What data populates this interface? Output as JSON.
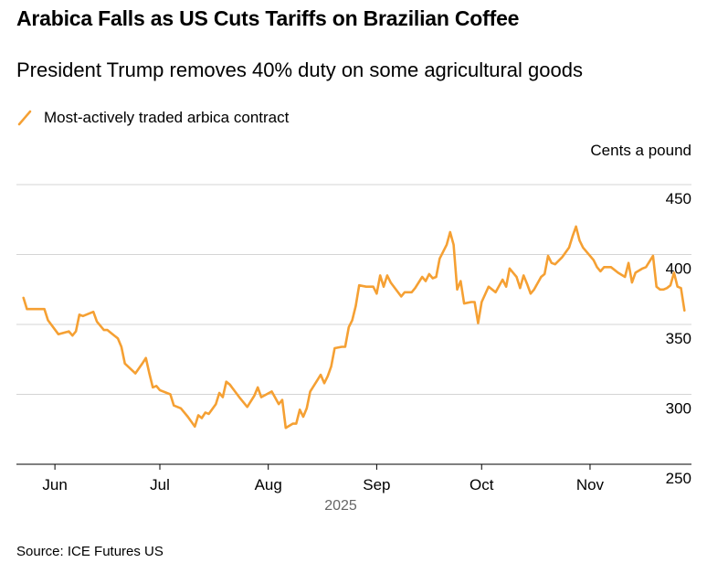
{
  "title": "Arabica Falls as US Cuts Tariffs on Brazilian Coffee",
  "subtitle": "President Trump removes 40% duty on some agricultural goods",
  "legend": {
    "label": "Most-actively traded arbica contract"
  },
  "source": "Source: ICE Futures US",
  "colors": {
    "line": "#f5a033",
    "grid": "#d4d4d4",
    "axis": "#000000",
    "year_label": "#666666"
  },
  "chart_data": {
    "type": "line",
    "title": "Arabica Falls as US Cuts Tariffs on Brazilian Coffee",
    "subtitle": "President Trump removes 40% duty on some agricultural goods",
    "ylabel": "Cents a pound",
    "xlabel": "2025",
    "ylim": [
      250,
      450
    ],
    "yticks": [
      250,
      300,
      350,
      400,
      450
    ],
    "xlim": [
      "2025-05-21",
      "2025-11-30"
    ],
    "xticks": [
      {
        "label": "Jun",
        "date": "2025-06-01"
      },
      {
        "label": "Jul",
        "date": "2025-07-01"
      },
      {
        "label": "Aug",
        "date": "2025-08-01"
      },
      {
        "label": "Sep",
        "date": "2025-09-01"
      },
      {
        "label": "Oct",
        "date": "2025-10-01"
      },
      {
        "label": "Nov",
        "date": "2025-11-01"
      }
    ],
    "grid": true,
    "legend_position": "top-left",
    "series": [
      {
        "name": "Most-actively traded arbica contract",
        "color": "#f5a033",
        "points": [
          [
            "2025-05-23",
            369
          ],
          [
            "2025-05-24",
            361
          ],
          [
            "2025-05-29",
            361
          ],
          [
            "2025-05-30",
            353
          ],
          [
            "2025-06-02",
            343
          ],
          [
            "2025-06-05",
            345
          ],
          [
            "2025-06-06",
            342
          ],
          [
            "2025-06-07",
            345
          ],
          [
            "2025-06-08",
            357
          ],
          [
            "2025-06-09",
            356
          ],
          [
            "2025-06-12",
            359
          ],
          [
            "2025-06-13",
            352
          ],
          [
            "2025-06-15",
            346
          ],
          [
            "2025-06-16",
            346
          ],
          [
            "2025-06-17",
            344
          ],
          [
            "2025-06-19",
            340
          ],
          [
            "2025-06-20",
            334
          ],
          [
            "2025-06-21",
            322
          ],
          [
            "2025-06-24",
            315
          ],
          [
            "2025-06-26",
            322
          ],
          [
            "2025-06-27",
            326
          ],
          [
            "2025-06-28",
            315
          ],
          [
            "2025-06-29",
            305
          ],
          [
            "2025-06-30",
            306
          ],
          [
            "2025-07-01",
            303
          ],
          [
            "2025-07-04",
            300
          ],
          [
            "2025-07-05",
            292
          ],
          [
            "2025-07-07",
            290
          ],
          [
            "2025-07-09",
            284
          ],
          [
            "2025-07-11",
            277
          ],
          [
            "2025-07-12",
            285
          ],
          [
            "2025-07-13",
            283
          ],
          [
            "2025-07-14",
            287
          ],
          [
            "2025-07-15",
            286
          ],
          [
            "2025-07-17",
            293
          ],
          [
            "2025-07-18",
            301
          ],
          [
            "2025-07-19",
            298
          ],
          [
            "2025-07-20",
            309
          ],
          [
            "2025-07-21",
            307
          ],
          [
            "2025-07-24",
            297
          ],
          [
            "2025-07-26",
            291
          ],
          [
            "2025-07-28",
            299
          ],
          [
            "2025-07-29",
            305
          ],
          [
            "2025-07-30",
            298
          ],
          [
            "2025-08-02",
            302
          ],
          [
            "2025-08-04",
            293
          ],
          [
            "2025-08-05",
            296
          ],
          [
            "2025-08-06",
            276
          ],
          [
            "2025-08-08",
            279
          ],
          [
            "2025-08-09",
            279
          ],
          [
            "2025-08-10",
            289
          ],
          [
            "2025-08-11",
            284
          ],
          [
            "2025-08-12",
            290
          ],
          [
            "2025-08-13",
            302
          ],
          [
            "2025-08-15",
            310
          ],
          [
            "2025-08-16",
            314
          ],
          [
            "2025-08-17",
            308
          ],
          [
            "2025-08-18",
            313
          ],
          [
            "2025-08-19",
            320
          ],
          [
            "2025-08-20",
            333
          ],
          [
            "2025-08-22",
            334
          ],
          [
            "2025-08-23",
            334
          ],
          [
            "2025-08-24",
            348
          ],
          [
            "2025-08-25",
            353
          ],
          [
            "2025-08-26",
            363
          ],
          [
            "2025-08-27",
            378
          ],
          [
            "2025-08-29",
            377
          ],
          [
            "2025-08-31",
            377
          ],
          [
            "2025-09-01",
            372
          ],
          [
            "2025-09-02",
            385
          ],
          [
            "2025-09-03",
            377
          ],
          [
            "2025-09-04",
            385
          ],
          [
            "2025-09-05",
            380
          ],
          [
            "2025-09-08",
            370
          ],
          [
            "2025-09-09",
            373
          ],
          [
            "2025-09-11",
            373
          ],
          [
            "2025-09-12",
            376
          ],
          [
            "2025-09-14",
            384
          ],
          [
            "2025-09-15",
            381
          ],
          [
            "2025-09-16",
            386
          ],
          [
            "2025-09-17",
            383
          ],
          [
            "2025-09-18",
            384
          ],
          [
            "2025-09-19",
            397
          ],
          [
            "2025-09-21",
            407
          ],
          [
            "2025-09-22",
            416
          ],
          [
            "2025-09-23",
            407
          ],
          [
            "2025-09-24",
            375
          ],
          [
            "2025-09-25",
            381
          ],
          [
            "2025-09-26",
            365
          ],
          [
            "2025-09-28",
            366
          ],
          [
            "2025-09-29",
            366
          ],
          [
            "2025-09-30",
            351
          ],
          [
            "2025-10-01",
            366
          ],
          [
            "2025-10-03",
            377
          ],
          [
            "2025-10-05",
            373
          ],
          [
            "2025-10-07",
            382
          ],
          [
            "2025-10-08",
            377
          ],
          [
            "2025-10-09",
            390
          ],
          [
            "2025-10-10",
            387
          ],
          [
            "2025-10-11",
            384
          ],
          [
            "2025-10-12",
            376
          ],
          [
            "2025-10-13",
            385
          ],
          [
            "2025-10-14",
            379
          ],
          [
            "2025-10-15",
            372
          ],
          [
            "2025-10-16",
            375
          ],
          [
            "2025-10-18",
            384
          ],
          [
            "2025-10-19",
            386
          ],
          [
            "2025-10-20",
            399
          ],
          [
            "2025-10-21",
            394
          ],
          [
            "2025-10-22",
            393
          ],
          [
            "2025-10-24",
            398
          ],
          [
            "2025-10-26",
            405
          ],
          [
            "2025-10-27",
            413
          ],
          [
            "2025-10-28",
            420
          ],
          [
            "2025-10-29",
            410
          ],
          [
            "2025-10-30",
            405
          ],
          [
            "2025-11-02",
            396
          ],
          [
            "2025-11-03",
            391
          ],
          [
            "2025-11-04",
            388
          ],
          [
            "2025-11-05",
            391
          ],
          [
            "2025-11-07",
            391
          ],
          [
            "2025-11-09",
            387
          ],
          [
            "2025-11-11",
            384
          ],
          [
            "2025-11-12",
            394
          ],
          [
            "2025-11-13",
            380
          ],
          [
            "2025-11-14",
            387
          ],
          [
            "2025-11-16",
            390
          ],
          [
            "2025-11-17",
            391
          ],
          [
            "2025-11-19",
            399
          ],
          [
            "2025-11-20",
            377
          ],
          [
            "2025-11-21",
            375
          ],
          [
            "2025-11-22",
            375
          ],
          [
            "2025-11-23",
            376
          ],
          [
            "2025-11-24",
            378
          ],
          [
            "2025-11-25",
            387
          ],
          [
            "2025-11-26",
            377
          ],
          [
            "2025-11-27",
            376
          ],
          [
            "2025-11-28",
            360
          ]
        ]
      }
    ]
  }
}
